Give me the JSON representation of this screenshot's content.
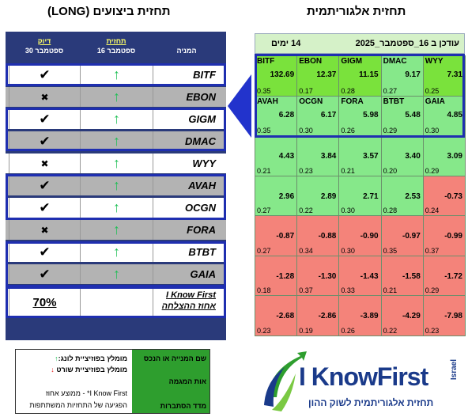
{
  "titles": {
    "left": "תחזית ביצועים (LONG)",
    "right": "תחזית אלגוריתמית"
  },
  "perf": {
    "headers": {
      "accuracy": [
        "דיוק",
        "30 ספטמבר"
      ],
      "forecast": [
        "תחזית",
        "16 ספטמבר"
      ],
      "stock": "המניה"
    },
    "rows": [
      {
        "stock": "BITF",
        "forecast": "↑",
        "result": "✔"
      },
      {
        "stock": "EBON",
        "forecast": "↑",
        "result": "✖"
      },
      {
        "stock": "GIGM",
        "forecast": "↑",
        "result": "✔"
      },
      {
        "stock": "DMAC",
        "forecast": "↑",
        "result": "✔"
      },
      {
        "stock": "WYY",
        "forecast": "↑",
        "result": "✖"
      },
      {
        "stock": "AVAH",
        "forecast": "↑",
        "result": "✔"
      },
      {
        "stock": "OCGN",
        "forecast": "↑",
        "result": "✔"
      },
      {
        "stock": "FORA",
        "forecast": "↑",
        "result": "✖"
      },
      {
        "stock": "BTBT",
        "forecast": "↑",
        "result": "✔"
      },
      {
        "stock": "GAIA",
        "forecast": "↑",
        "result": "✔"
      }
    ],
    "summary": {
      "label1": "I Know First",
      "label2": "אחוז ההצלחה",
      "value": "70%"
    },
    "row_colors": {
      "white": "#ffffff",
      "gray": "#b3b3b3"
    }
  },
  "heatmap": {
    "updated": "עודכן ב 16_ספטמבר_2025",
    "horizon": "14 ימים",
    "colors": {
      "bright": "#7ae23c",
      "green": "#86e88a",
      "red": "#f4837a"
    },
    "rows": [
      [
        {
          "sym": "WYY",
          "sig": "7.31",
          "pred": "0.25",
          "c": "bright"
        },
        {
          "sym": "DMAC",
          "sig": "9.17",
          "pred": "0.27",
          "c": "green"
        },
        {
          "sym": "GIGM",
          "sig": "11.15",
          "pred": "0.28",
          "c": "bright"
        },
        {
          "sym": "EBON",
          "sig": "12.37",
          "pred": "0.17",
          "c": "bright"
        },
        {
          "sym": "BITF",
          "sig": "132.69",
          "pred": "0.35",
          "c": "bright"
        }
      ],
      [
        {
          "sym": "GAIA",
          "sig": "4.85",
          "pred": "0.30",
          "c": "green"
        },
        {
          "sym": "BTBT",
          "sig": "5.48",
          "pred": "0.29",
          "c": "green"
        },
        {
          "sym": "FORA",
          "sig": "5.98",
          "pred": "0.26",
          "c": "green"
        },
        {
          "sym": "OCGN",
          "sig": "6.17",
          "pred": "0.30",
          "c": "green"
        },
        {
          "sym": "AVAH",
          "sig": "6.28",
          "pred": "0.35",
          "c": "green"
        }
      ],
      [
        {
          "sym": "",
          "sig": "3.09",
          "pred": "0.29",
          "c": "green"
        },
        {
          "sym": "",
          "sig": "3.40",
          "pred": "0.20",
          "c": "green"
        },
        {
          "sym": "",
          "sig": "3.57",
          "pred": "0.21",
          "c": "green"
        },
        {
          "sym": "",
          "sig": "3.84",
          "pred": "0.23",
          "c": "green"
        },
        {
          "sym": "",
          "sig": "4.43",
          "pred": "0.21",
          "c": "green"
        }
      ],
      [
        {
          "sym": "",
          "sig": "-0.73",
          "pred": "0.24",
          "c": "red"
        },
        {
          "sym": "",
          "sig": "2.53",
          "pred": "0.28",
          "c": "green"
        },
        {
          "sym": "",
          "sig": "2.71",
          "pred": "0.30",
          "c": "green"
        },
        {
          "sym": "",
          "sig": "2.89",
          "pred": "0.22",
          "c": "green"
        },
        {
          "sym": "",
          "sig": "2.96",
          "pred": "0.27",
          "c": "green"
        }
      ],
      [
        {
          "sym": "",
          "sig": "-0.99",
          "pred": "0.37",
          "c": "red"
        },
        {
          "sym": "",
          "sig": "-0.97",
          "pred": "0.35",
          "c": "red"
        },
        {
          "sym": "",
          "sig": "-0.90",
          "pred": "0.30",
          "c": "red"
        },
        {
          "sym": "",
          "sig": "-0.88",
          "pred": "0.34",
          "c": "red"
        },
        {
          "sym": "",
          "sig": "-0.87",
          "pred": "0.27",
          "c": "red"
        }
      ],
      [
        {
          "sym": "",
          "sig": "-1.72",
          "pred": "0.29",
          "c": "red"
        },
        {
          "sym": "",
          "sig": "-1.58",
          "pred": "0.21",
          "c": "red"
        },
        {
          "sym": "",
          "sig": "-1.43",
          "pred": "0.33",
          "c": "red"
        },
        {
          "sym": "",
          "sig": "-1.30",
          "pred": "0.37",
          "c": "red"
        },
        {
          "sym": "",
          "sig": "-1.28",
          "pred": "0.18",
          "c": "red"
        }
      ],
      [
        {
          "sym": "",
          "sig": "-7.98",
          "pred": "0.23",
          "c": "red"
        },
        {
          "sym": "",
          "sig": "-4.29",
          "pred": "0.22",
          "c": "red"
        },
        {
          "sym": "",
          "sig": "-3.89",
          "pred": "0.26",
          "c": "red"
        },
        {
          "sym": "",
          "sig": "-2.86",
          "pred": "0.19",
          "c": "red"
        },
        {
          "sym": "",
          "sig": "-2.68",
          "pred": "0.23",
          "c": "red"
        }
      ]
    ]
  },
  "legend": {
    "g1": "שם המנייה או הנכס",
    "g2": "אות המגמה",
    "g3": "מדד הסתברות",
    "w1": "מומלץ בפוזיציית לונג:",
    "w1_arrow": "↑",
    "w2": "מומלץ בפוזיציית שורט",
    "w2_arrow": "↓",
    "w3": "I Know First* - ממוצע אחוז",
    "w4": "הפגיעה של התחזיות המשתתפות"
  },
  "logo": {
    "brand_i": "I",
    "brand_rest": " KnowFirst",
    "registered": "Israel",
    "tagline": "תחזית אלגוריתמית לשוק ההון",
    "accent": "#1a3a8a"
  }
}
